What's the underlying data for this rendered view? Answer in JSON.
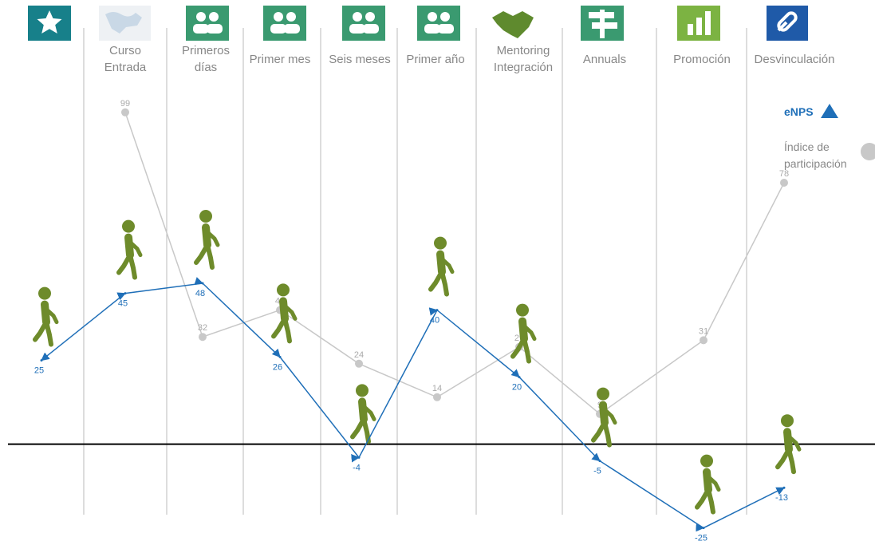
{
  "chart_data": {
    "type": "line",
    "categories": [
      null,
      "Curso Entrada",
      "Primeros días",
      "Primer mes",
      "Seis meses",
      "Primer año",
      "Mentoring Integración",
      "Annuals",
      "Promoción",
      "Desvinculación"
    ],
    "series": [
      {
        "name": "eNPS",
        "color": "#1f6fb8",
        "values": [
          25,
          45,
          48,
          26,
          -4,
          40,
          20,
          -5,
          -25,
          -13
        ]
      },
      {
        "name": "Índice de participación",
        "color": "#c8c8c8",
        "values": [
          null,
          99,
          32,
          40,
          24,
          14,
          29,
          9,
          31,
          78
        ]
      }
    ],
    "ylim": [
      -27,
      108
    ]
  }
}
